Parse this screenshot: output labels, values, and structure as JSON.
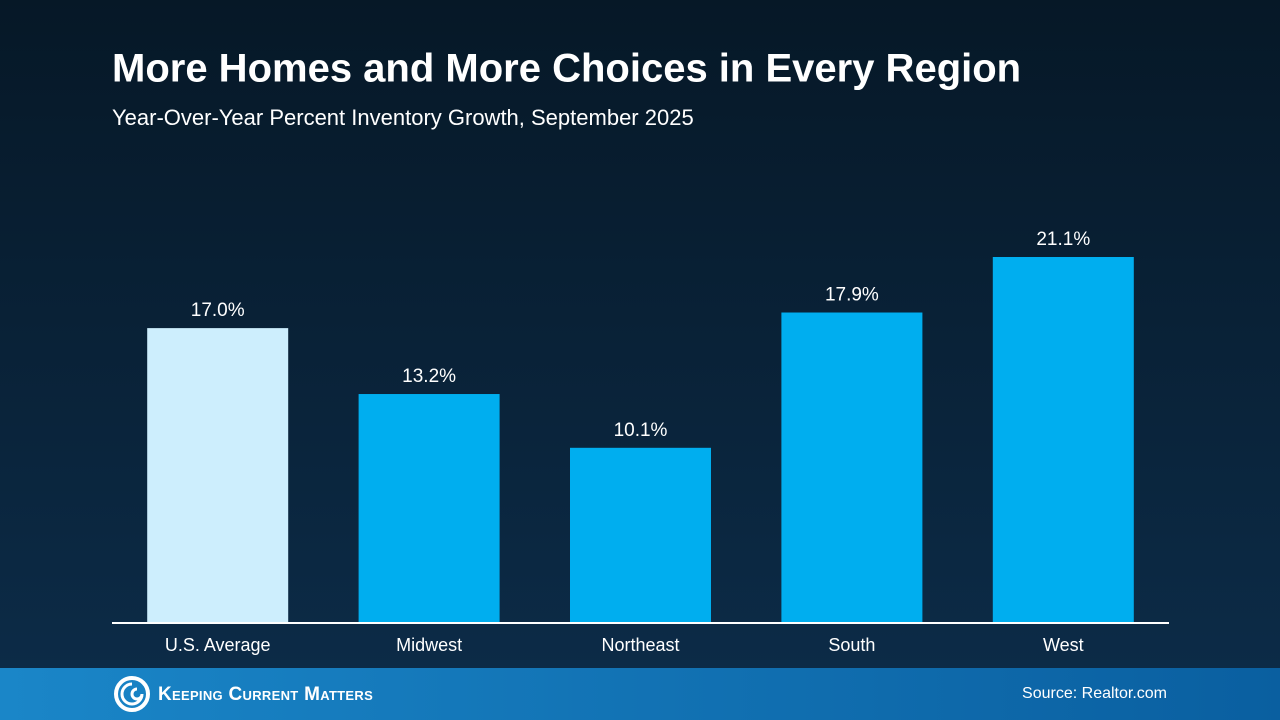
{
  "chart_data": {
    "type": "bar",
    "title": "More Homes and More Choices in Every Region",
    "subtitle": "Year-Over-Year Percent Inventory Growth, September 2025",
    "categories": [
      "U.S. Average",
      "Midwest",
      "Northeast",
      "South",
      "West"
    ],
    "values": [
      17.0,
      13.2,
      10.1,
      17.9,
      21.1
    ],
    "value_labels": [
      "17.0%",
      "13.2%",
      "10.1%",
      "17.9%",
      "21.1%"
    ],
    "colors": [
      "#cdeefd",
      "#00aeef",
      "#00aeef",
      "#00aeef",
      "#00aeef"
    ]
  },
  "footer": {
    "brand": "Keeping Current Matters",
    "source": "Source: Realtor.com"
  }
}
